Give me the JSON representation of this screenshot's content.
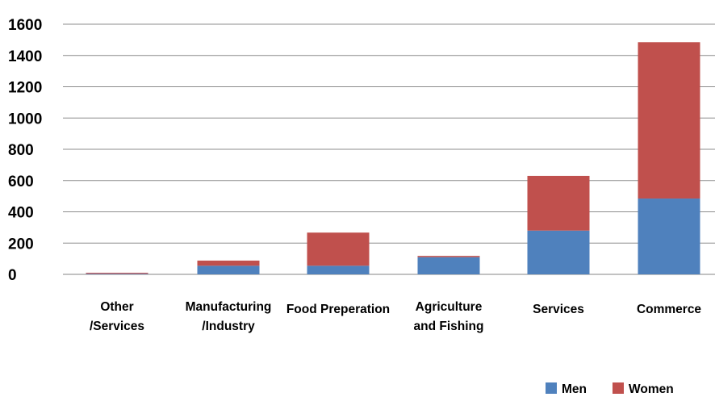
{
  "chart_data": {
    "type": "bar",
    "stacked": true,
    "categories": [
      [
        "Other",
        "/Services"
      ],
      [
        "Manufacturing",
        "/Industry"
      ],
      [
        "Food Preperation"
      ],
      [
        "Agriculture",
        "and Fishing"
      ],
      [
        "Services"
      ],
      [
        "Commerce"
      ]
    ],
    "series": [
      {
        "name": "Men",
        "color": "#4f81bd",
        "values": [
          4,
          55,
          55,
          110,
          280,
          485
        ]
      },
      {
        "name": "Women",
        "color": "#c0504d",
        "values": [
          6,
          33,
          212,
          8,
          350,
          1000
        ]
      }
    ],
    "y_ticks": [
      "0",
      "200",
      "400",
      "600",
      "800",
      "1000",
      "1200",
      "1400",
      "1600"
    ],
    "ylim": [
      0,
      1600
    ],
    "grid": true,
    "legend": "bottom-right"
  }
}
